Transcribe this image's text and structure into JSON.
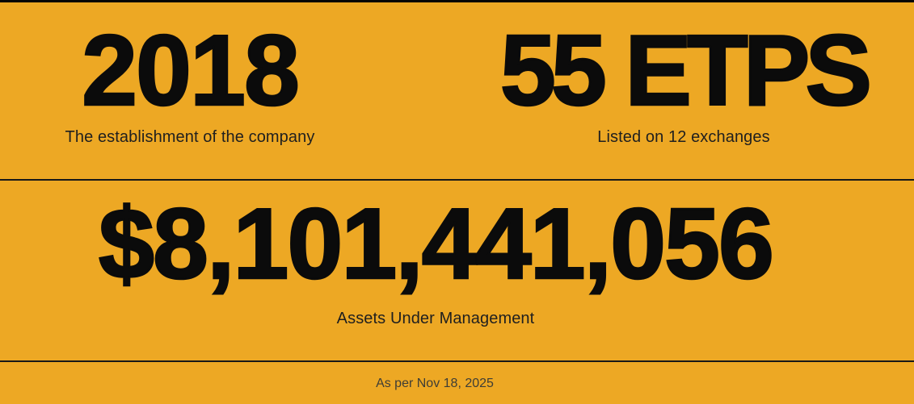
{
  "colors": {
    "background": "#EDA824",
    "heading": "#0B0B0B",
    "subtitle": "#1F1F1F",
    "footer_text": "#3E3D36",
    "divider": "#181818",
    "top_border": "#050505"
  },
  "stats": [
    {
      "id": "establishment-year",
      "value": "2018",
      "label": "The establishment of the company"
    },
    {
      "id": "etps-count",
      "value": "55 ETPS",
      "label": "Listed on 12 exchanges"
    },
    {
      "id": "aum",
      "value": "$8,101,441,056",
      "label": "Assets Under Management"
    }
  ],
  "footer": {
    "as_of": "As per Nov 18, 2025"
  }
}
